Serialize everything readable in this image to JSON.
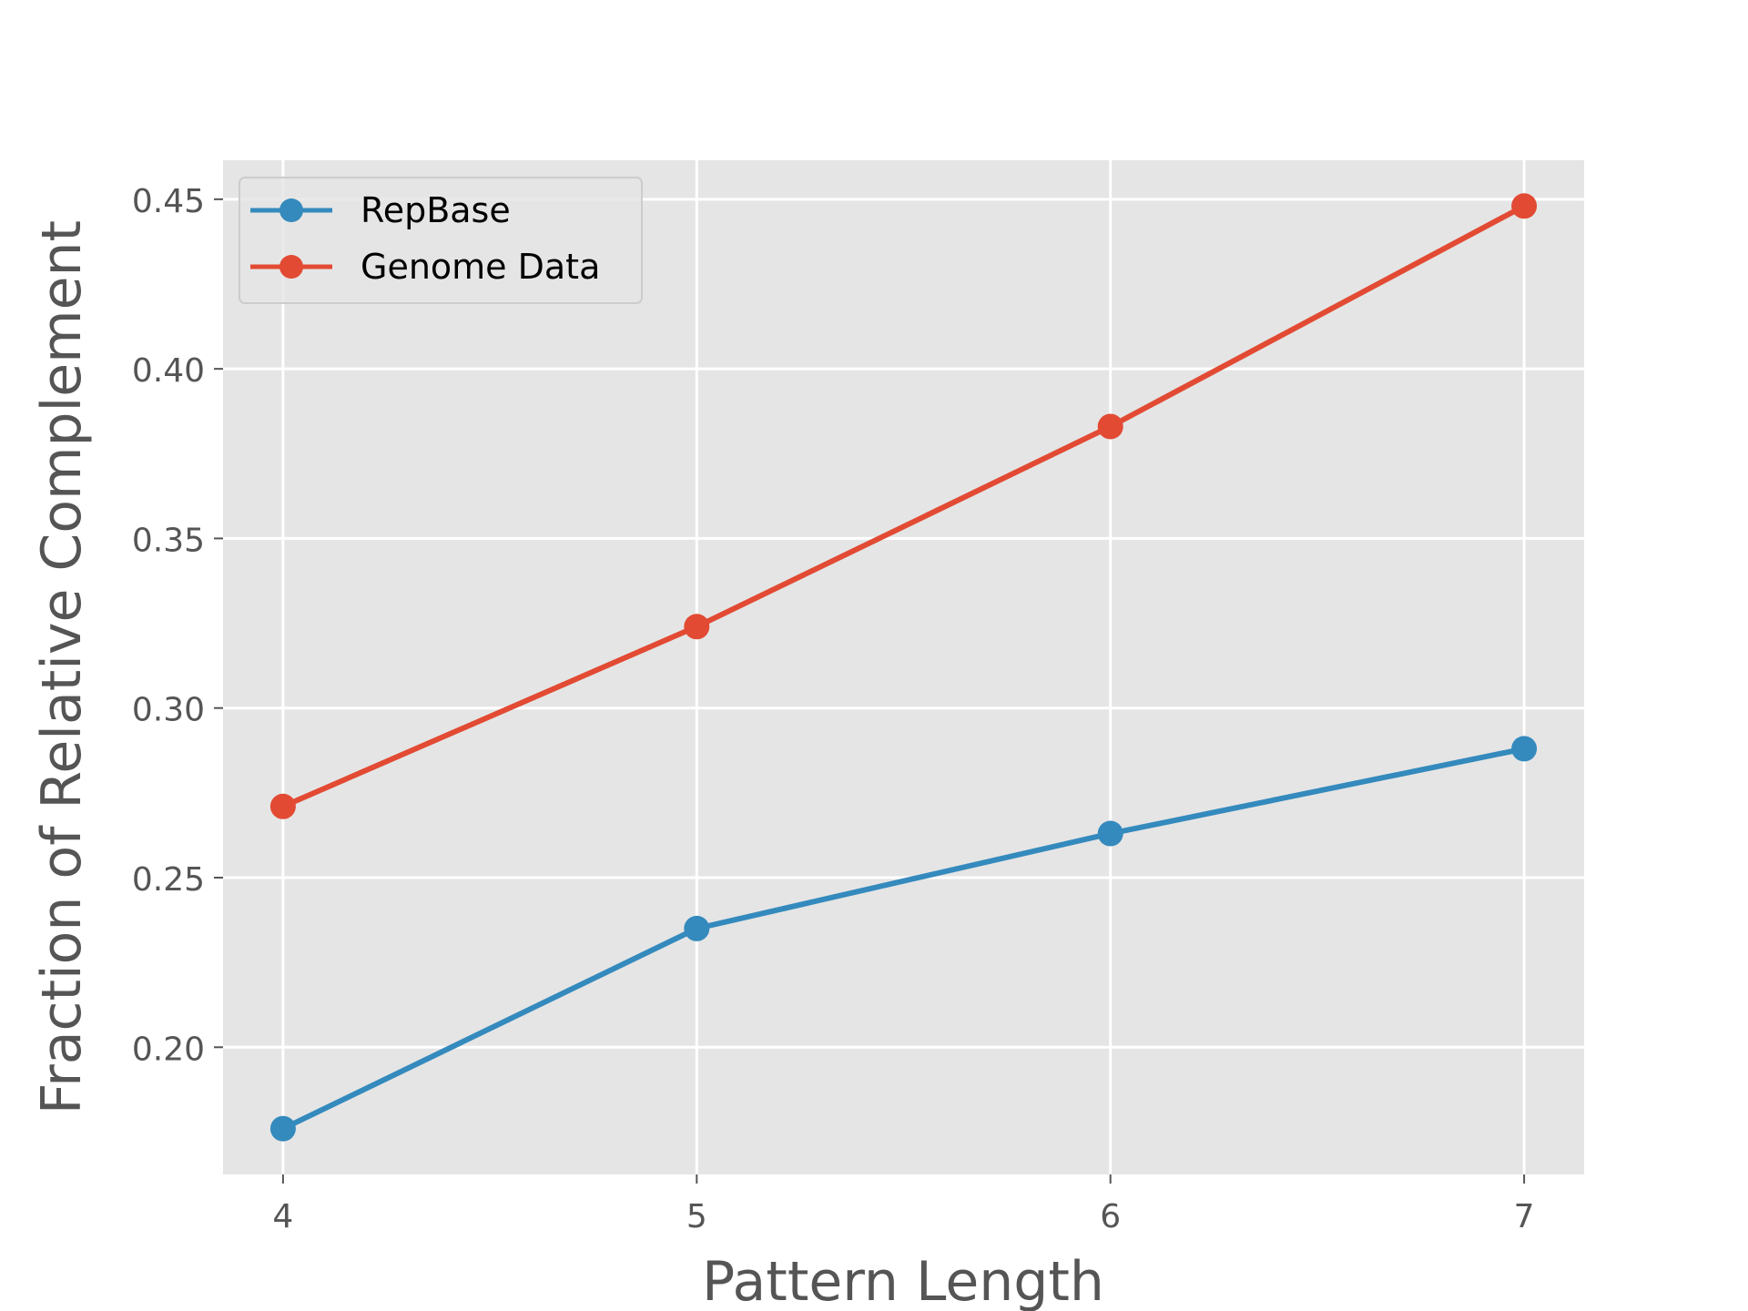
{
  "chart_data": {
    "type": "line",
    "title": "",
    "xlabel": "Pattern Length",
    "ylabel": "Fraction of Relative Complement",
    "x": [
      4,
      5,
      6,
      7
    ],
    "xlim": [
      3.855,
      7.145
    ],
    "ylim": [
      0.1625,
      0.4615
    ],
    "xticks": [
      4,
      5,
      6,
      7
    ],
    "xtick_labels": [
      "4",
      "5",
      "6",
      "7"
    ],
    "yticks": [
      0.2,
      0.25,
      0.3,
      0.35,
      0.4,
      0.45
    ],
    "ytick_labels": [
      "0.20",
      "0.25",
      "0.30",
      "0.35",
      "0.40",
      "0.45"
    ],
    "grid": true,
    "legend_position": "top-left",
    "series": [
      {
        "name": "RepBase",
        "color": "#348abd",
        "values": [
          0.176,
          0.235,
          0.263,
          0.288
        ]
      },
      {
        "name": "Genome Data",
        "color": "#e24a33",
        "values": [
          0.271,
          0.324,
          0.383,
          0.448
        ]
      }
    ],
    "style": {
      "plot_background": "#e5e5e5",
      "grid_color": "#ffffff",
      "text_color": "#555555"
    }
  }
}
